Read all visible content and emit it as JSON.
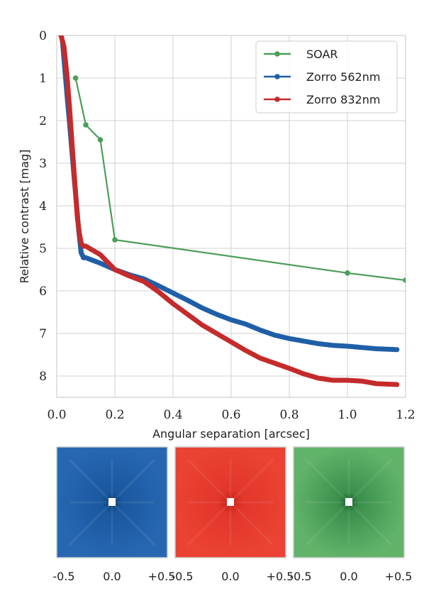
{
  "chart_data": [
    {
      "type": "line",
      "title": "",
      "xlabel": "Angular separation [arcsec]",
      "ylabel": "Relative contrast [mag]",
      "xlim": [
        0.0,
        1.2
      ],
      "ylim": [
        0,
        8.5
      ],
      "y_inverted": true,
      "grid": true,
      "legend_position": "top-right",
      "x_ticks": [
        "0.0",
        "0.2",
        "0.4",
        "0.6",
        "0.8",
        "1.0",
        "1.2"
      ],
      "y_ticks": [
        "0",
        "1",
        "2",
        "3",
        "4",
        "5",
        "6",
        "7",
        "8"
      ],
      "series": [
        {
          "name": "SOAR",
          "color": "#4c9e5a",
          "marker": "all",
          "x": [
            0.065,
            0.1,
            0.15,
            0.2,
            1.0,
            1.2
          ],
          "y": [
            1.0,
            2.1,
            2.45,
            4.8,
            5.58,
            5.75
          ]
        },
        {
          "name": "Zorro 562nm",
          "color": "#1f5fa8",
          "marker": "dense",
          "x": [
            0.02,
            0.028,
            0.036,
            0.044,
            0.052,
            0.06,
            0.068,
            0.076,
            0.084,
            0.092,
            0.1,
            0.15,
            0.2,
            0.25,
            0.3,
            0.35,
            0.4,
            0.45,
            0.5,
            0.55,
            0.6,
            0.65,
            0.7,
            0.75,
            0.8,
            0.85,
            0.9,
            0.95,
            1.0,
            1.05,
            1.1,
            1.17
          ],
          "y": [
            0.15,
            0.8,
            1.45,
            2.05,
            2.7,
            3.35,
            3.95,
            4.6,
            5.1,
            5.22,
            5.22,
            5.35,
            5.5,
            5.62,
            5.72,
            5.88,
            6.05,
            6.22,
            6.4,
            6.55,
            6.68,
            6.78,
            6.92,
            7.04,
            7.12,
            7.18,
            7.24,
            7.28,
            7.3,
            7.33,
            7.36,
            7.38
          ]
        },
        {
          "name": "Zorro 832nm",
          "color": "#c42b2b",
          "marker": "dense",
          "x": [
            0.015,
            0.025,
            0.035,
            0.043,
            0.05,
            0.057,
            0.064,
            0.071,
            0.078,
            0.085,
            0.092,
            0.1,
            0.15,
            0.2,
            0.25,
            0.3,
            0.35,
            0.4,
            0.45,
            0.5,
            0.55,
            0.6,
            0.65,
            0.7,
            0.75,
            0.8,
            0.85,
            0.9,
            0.95,
            1.0,
            1.05,
            1.1,
            1.17
          ],
          "y": [
            0.0,
            0.27,
            0.92,
            1.6,
            2.28,
            2.95,
            3.62,
            4.28,
            4.65,
            4.9,
            4.95,
            4.95,
            5.15,
            5.5,
            5.65,
            5.78,
            6.02,
            6.3,
            6.55,
            6.8,
            7.0,
            7.2,
            7.4,
            7.58,
            7.7,
            7.82,
            7.95,
            8.05,
            8.1,
            8.1,
            8.12,
            8.18,
            8.2
          ]
        }
      ]
    },
    {
      "type": "image-panels",
      "panels": [
        {
          "color": "#1f5fa8",
          "ticks": [
            "-0.5",
            "0.0",
            "+0.5"
          ]
        },
        {
          "color": "#e73b2e",
          "ticks": [
            "-0.5",
            "0.0",
            "+0.5"
          ]
        },
        {
          "color": "#5cb065",
          "ticks": [
            "-0.5",
            "0.0",
            "+0.5"
          ]
        }
      ]
    }
  ]
}
